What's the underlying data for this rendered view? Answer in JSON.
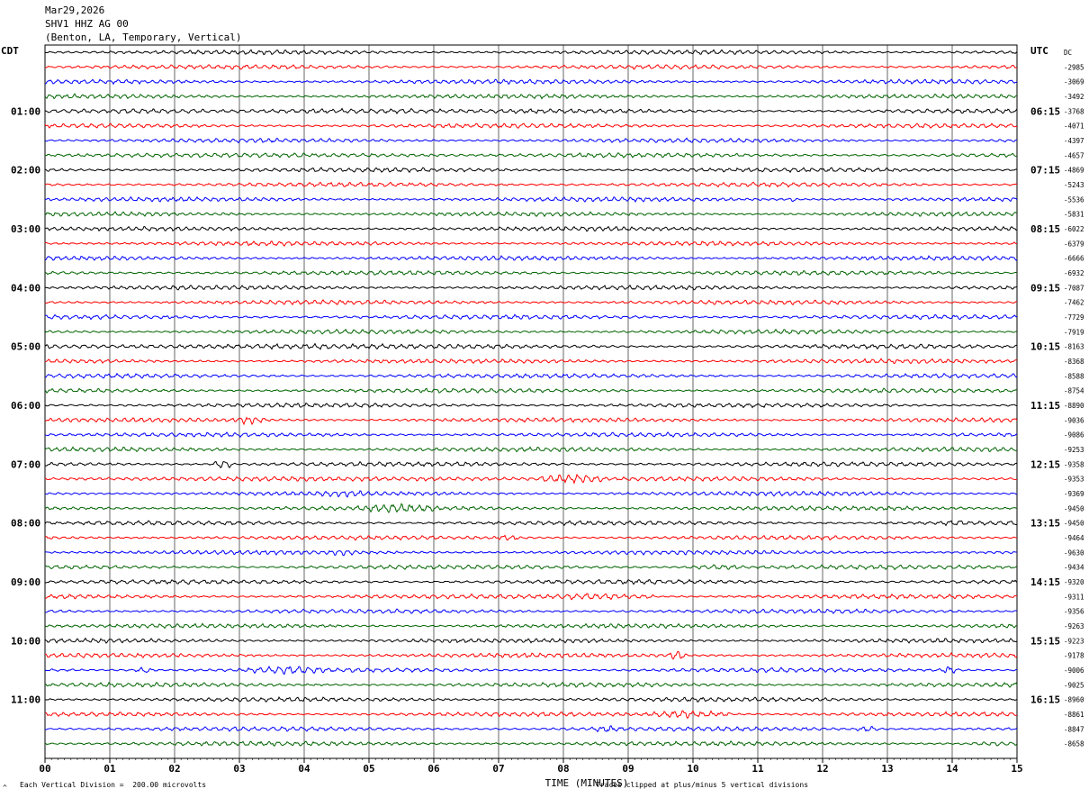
{
  "header": {
    "date": "Mar29,2026",
    "station": "SHV1 HHZ AG 00",
    "location": "(Benton, LA, Temporary, Vertical)"
  },
  "left_tz": "CDT",
  "right_tz": "UTC",
  "footer": {
    "scale_note": "Each Vertical Division =  200.00 microvolts",
    "clip_note": "Traces clipped at plus/minus 5 vertical divisions",
    "corner_mark": "^"
  },
  "chart_data": {
    "type": "line",
    "title": "",
    "xlabel": "TIME (MINUTES)",
    "ylabel": "",
    "xlim": [
      0,
      15
    ],
    "x_ticks": [
      "00",
      "01",
      "02",
      "03",
      "04",
      "05",
      "06",
      "07",
      "08",
      "09",
      "10",
      "11",
      "12",
      "13",
      "14",
      "15"
    ],
    "grid": true,
    "trace_colors": [
      "#000000",
      "#ff0000",
      "#0000ff",
      "#006400"
    ],
    "left_hour_labels": [
      "01:00",
      "02:00",
      "03:00",
      "04:00",
      "05:00",
      "06:00",
      "07:00",
      "08:00",
      "09:00",
      "10:00",
      "11:00"
    ],
    "right_hour_labels": [
      "06:15",
      "07:15",
      "08:15",
      "09:15",
      "10:15",
      "11:15",
      "12:15",
      "13:15",
      "14:15",
      "15:15",
      "16:15"
    ],
    "trace_offsets": [
      "DC",
      "-2985",
      "-3069",
      "-3492",
      "-3768",
      "-4071",
      "-4397",
      "-4657",
      "-4869",
      "-5243",
      "-5536",
      "-5831",
      "-6022",
      "-6379",
      "-6666",
      "-6932",
      "-7087",
      "-7462",
      "-7729",
      "-7919",
      "-8163",
      "-8368",
      "-8588",
      "-8754",
      "-8890",
      "-9036",
      "-9086",
      "-9253",
      "-9358",
      "-9353",
      "-9369",
      "-9450",
      "-9450",
      "-9464",
      "-9630",
      "-9434",
      "-9320",
      "-9311",
      "-9356",
      "-9263",
      "-9223",
      "-9178",
      "-9006",
      "-9025",
      "-8960",
      "-8861",
      "-8847",
      "-8658"
    ],
    "events": [
      {
        "trace": 4,
        "from": 1.5,
        "to": 8.5,
        "amp": 1.6
      },
      {
        "trace": 7,
        "from": 0.0,
        "to": 6.5,
        "amp": 1.5
      },
      {
        "trace": 10,
        "from": 9.2,
        "to": 9.4,
        "amp": 2.2
      },
      {
        "trace": 10,
        "from": 11.5,
        "to": 11.6,
        "amp": 2.0
      },
      {
        "trace": 20,
        "from": 0.0,
        "to": 8.5,
        "amp": 1.7
      },
      {
        "trace": 25,
        "from": 2.9,
        "to": 3.4,
        "amp": 3.0
      },
      {
        "trace": 28,
        "from": 2.6,
        "to": 2.9,
        "amp": 3.2
      },
      {
        "trace": 28,
        "from": 11.2,
        "to": 15.0,
        "amp": 1.5
      },
      {
        "trace": 29,
        "from": 0.0,
        "to": 8.6,
        "amp": 1.5
      },
      {
        "trace": 29,
        "from": 7.6,
        "to": 8.6,
        "amp": 3.5
      },
      {
        "trace": 30,
        "from": 3.7,
        "to": 5.6,
        "amp": 2.2
      },
      {
        "trace": 31,
        "from": 4.8,
        "to": 6.1,
        "amp": 3.2
      },
      {
        "trace": 32,
        "from": 13.8,
        "to": 14.3,
        "amp": 2.2
      },
      {
        "trace": 33,
        "from": 7.0,
        "to": 7.3,
        "amp": 2.5
      },
      {
        "trace": 34,
        "from": 4.3,
        "to": 4.9,
        "amp": 2.2
      },
      {
        "trace": 35,
        "from": 9.9,
        "to": 10.8,
        "amp": 2.0
      },
      {
        "trace": 37,
        "from": 7.3,
        "to": 9.4,
        "amp": 2.2
      },
      {
        "trace": 41,
        "from": 9.6,
        "to": 9.9,
        "amp": 3.0
      },
      {
        "trace": 42,
        "from": 3.1,
        "to": 4.4,
        "amp": 3.0
      },
      {
        "trace": 42,
        "from": 1.4,
        "to": 1.7,
        "amp": 2.2
      },
      {
        "trace": 42,
        "from": 13.8,
        "to": 14.1,
        "amp": 2.8
      },
      {
        "trace": 45,
        "from": 9.2,
        "to": 10.6,
        "amp": 2.5
      },
      {
        "trace": 46,
        "from": 8.4,
        "to": 8.9,
        "amp": 2.5
      },
      {
        "trace": 46,
        "from": 12.5,
        "to": 12.9,
        "amp": 2.2
      },
      {
        "trace": 47,
        "from": 14.3,
        "to": 15.0,
        "amp": 1.8
      }
    ]
  }
}
